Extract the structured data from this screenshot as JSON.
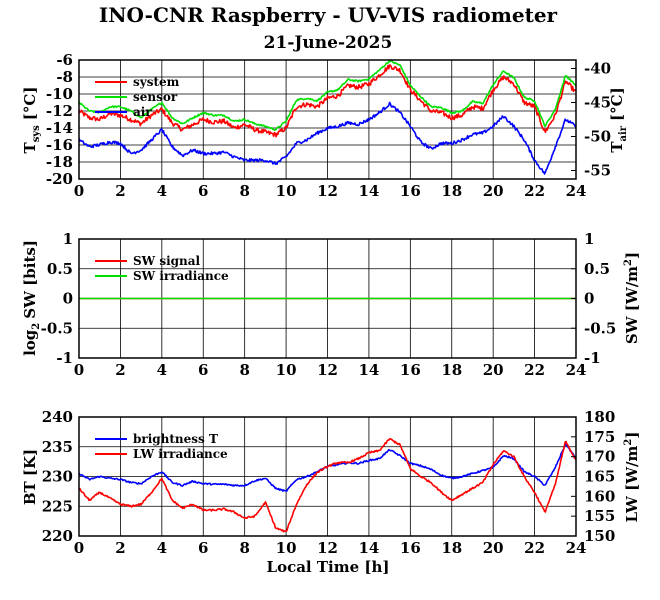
{
  "title": "INO-CNR Raspberry - UV-VIS radiometer",
  "subtitle": "21-June-2025",
  "colors": {
    "red": "#ff0000",
    "green": "#00e000",
    "blue": "#0000ff",
    "grid": "#000000"
  },
  "chart_data": [
    {
      "type": "line",
      "name": "temperature",
      "ylabel_left": "T",
      "ylabel_left_sub": "sys",
      "ylabel_left_unit": "[°C]",
      "ylabel_right": "T",
      "ylabel_right_sub": "air",
      "ylabel_right_unit": "[°C]",
      "xlim": [
        0,
        24
      ],
      "ylim": [
        -20,
        -6
      ],
      "ylim_right": [
        -56.25,
        -38.75
      ],
      "xticks": [
        0,
        2,
        4,
        6,
        8,
        10,
        12,
        14,
        16,
        18,
        20,
        22,
        24
      ],
      "yticks": [
        -20,
        -18,
        -16,
        -14,
        -12,
        -10,
        -8,
        -6
      ],
      "yticks_right": [
        -55,
        -50,
        -45,
        -40
      ],
      "grid": true,
      "legend_position": "top-left",
      "series": [
        {
          "name": "system",
          "color": "#ff0000",
          "axis": "left",
          "noise": 0.55,
          "x": [
            0,
            0.5,
            1,
            1.5,
            2,
            2.5,
            3,
            3.5,
            4,
            4.5,
            5,
            5.5,
            6,
            6.5,
            7,
            7.5,
            8,
            8.5,
            9,
            9.5,
            10,
            10.5,
            11,
            11.5,
            12,
            12.5,
            13,
            13.5,
            14,
            14.5,
            15,
            15.5,
            16,
            16.5,
            17,
            17.5,
            18,
            18.5,
            19,
            19.5,
            20,
            20.5,
            21,
            21.5,
            22,
            22.5,
            23,
            23.5,
            24
          ],
          "y": [
            -12,
            -12.8,
            -13,
            -12.3,
            -12.5,
            -13,
            -13.5,
            -12.5,
            -11.8,
            -13.4,
            -14.2,
            -13.6,
            -13,
            -13.3,
            -13.2,
            -14,
            -13.6,
            -14.2,
            -14.5,
            -14.8,
            -14,
            -11.5,
            -11.2,
            -11.5,
            -10.5,
            -10.2,
            -9,
            -9.2,
            -8.8,
            -7.8,
            -6.7,
            -7.2,
            -9.5,
            -10.8,
            -12,
            -12.2,
            -12.8,
            -12.5,
            -11.5,
            -11.7,
            -9.5,
            -8,
            -8.8,
            -11,
            -11.5,
            -14.5,
            -12.5,
            -8.5,
            -9.8
          ]
        },
        {
          "name": "sensor",
          "color": "#00e000",
          "axis": "left",
          "noise": 0.2,
          "x": [
            0,
            0.5,
            1,
            1.5,
            2,
            2.5,
            3,
            3.5,
            4,
            4.5,
            5,
            5.5,
            6,
            6.5,
            7,
            7.5,
            8,
            8.5,
            9,
            9.5,
            10,
            10.5,
            11,
            11.5,
            12,
            12.5,
            13,
            13.5,
            14,
            14.5,
            15,
            15.5,
            16,
            16.5,
            17,
            17.5,
            18,
            18.5,
            19,
            19.5,
            20,
            20.5,
            21,
            21.5,
            22,
            22.5,
            23,
            23.5,
            24
          ],
          "y": [
            -11,
            -12,
            -12.2,
            -11.5,
            -11.5,
            -12,
            -12.8,
            -11.8,
            -11,
            -12.8,
            -13.5,
            -12.8,
            -12.2,
            -12.5,
            -12.5,
            -13.2,
            -13,
            -13.5,
            -13.8,
            -14.2,
            -13.2,
            -10.7,
            -10.5,
            -10.8,
            -9.8,
            -9.5,
            -8.3,
            -8.5,
            -8.2,
            -7.2,
            -6.1,
            -6.6,
            -9,
            -10.3,
            -11.5,
            -11.6,
            -12.2,
            -12,
            -10.9,
            -11.1,
            -8.9,
            -7.3,
            -8.1,
            -10.4,
            -10.8,
            -13.8,
            -11.8,
            -7.8,
            -9
          ]
        },
        {
          "name": "air",
          "color": "#0000ff",
          "axis": "right",
          "noise": 0.45,
          "x": [
            0,
            0.5,
            1,
            1.5,
            2,
            2.5,
            3,
            3.5,
            4,
            4.5,
            5,
            5.5,
            6,
            6.5,
            7,
            7.5,
            8,
            8.5,
            9,
            9.5,
            10,
            10.5,
            11,
            11.5,
            12,
            12.5,
            13,
            13.5,
            14,
            14.5,
            15,
            15.5,
            16,
            16.5,
            17,
            17.5,
            18,
            18.5,
            19,
            19.5,
            20,
            20.5,
            21,
            21.5,
            22,
            22.5,
            23,
            23.5,
            24
          ],
          "y": [
            -50.5,
            -51.5,
            -51.2,
            -50.8,
            -51,
            -52.5,
            -52,
            -50.5,
            -49,
            -51.5,
            -52.8,
            -52,
            -52.5,
            -52.5,
            -52.3,
            -53,
            -53.5,
            -53.5,
            -53.5,
            -54,
            -53,
            -51,
            -50.5,
            -49.5,
            -48.8,
            -48.5,
            -48,
            -48.2,
            -47.5,
            -46.5,
            -45.2,
            -46.5,
            -48.5,
            -50.8,
            -51.8,
            -51,
            -51,
            -50.5,
            -49.7,
            -49.5,
            -48.5,
            -47,
            -48.5,
            -50.5,
            -53.5,
            -55.5,
            -51.5,
            -47.5,
            -48.5
          ]
        }
      ]
    },
    {
      "type": "line",
      "name": "shortwave",
      "ylabel_left": "log",
      "ylabel_left_sub": "2",
      "ylabel_left_unit": "SW [bits]",
      "ylabel_right": "SW [W/m",
      "ylabel_right_sup": "2",
      "ylabel_right_tail": "]",
      "xlim": [
        0,
        24
      ],
      "ylim": [
        -1,
        1
      ],
      "ylim_right": [
        -1,
        1
      ],
      "xticks": [
        0,
        2,
        4,
        6,
        8,
        10,
        12,
        14,
        16,
        18,
        20,
        22,
        24
      ],
      "yticks": [
        -1,
        -0.5,
        0,
        0.5,
        1
      ],
      "yticks_right": [
        -1,
        -0.5,
        0,
        0.5,
        1
      ],
      "grid": true,
      "legend_position": "top-left",
      "series": [
        {
          "name": "SW signal",
          "color": "#ff0000",
          "axis": "left",
          "noise": 0,
          "x": [
            0,
            24
          ],
          "y": [
            0,
            0
          ]
        },
        {
          "name": "SW irradiance",
          "color": "#00e000",
          "axis": "right",
          "noise": 0,
          "x": [
            0,
            24
          ],
          "y": [
            0,
            0
          ]
        }
      ]
    },
    {
      "type": "line",
      "name": "longwave",
      "ylabel_left": "BT [K]",
      "ylabel_right": "LW [W/m",
      "ylabel_right_sup": "2",
      "ylabel_right_tail": "]",
      "xlabel": "Local Time [h]",
      "xlim": [
        0,
        24
      ],
      "ylim": [
        220,
        240
      ],
      "ylim_right": [
        150,
        180
      ],
      "xticks": [
        0,
        2,
        4,
        6,
        8,
        10,
        12,
        14,
        16,
        18,
        20,
        22,
        24
      ],
      "yticks": [
        220,
        225,
        230,
        235,
        240
      ],
      "yticks_right": [
        150,
        155,
        160,
        165,
        170,
        175,
        180
      ],
      "grid": true,
      "legend_position": "top-left",
      "series": [
        {
          "name": "brightness T",
          "color": "#0000ff",
          "axis": "left",
          "noise": 0.25,
          "x": [
            0,
            0.5,
            1,
            1.5,
            2,
            2.5,
            3,
            3.5,
            4,
            4.5,
            5,
            5.5,
            6,
            6.5,
            7,
            7.5,
            8,
            8.5,
            9,
            9.5,
            10,
            10.5,
            11,
            11.5,
            12,
            12.5,
            13,
            13.5,
            14,
            14.5,
            15,
            15.5,
            16,
            16.5,
            17,
            17.5,
            18,
            18.5,
            19,
            19.5,
            20,
            20.5,
            21,
            21.5,
            22,
            22.5,
            23,
            23.5,
            24
          ],
          "y": [
            230.5,
            229.5,
            230,
            229.7,
            229.5,
            229,
            228.8,
            230,
            230.8,
            229,
            228.5,
            229.2,
            228.8,
            228.7,
            228.7,
            228.5,
            228.5,
            229.3,
            229.7,
            228,
            227.5,
            229.5,
            230,
            230.8,
            231.7,
            232,
            232.3,
            232.2,
            232.7,
            233,
            234.5,
            233.5,
            232.2,
            231.8,
            231.2,
            230.2,
            229.7,
            230,
            230.5,
            231,
            231.5,
            233.5,
            233,
            230.8,
            230,
            228.5,
            231.5,
            235.5,
            233
          ]
        },
        {
          "name": "LW irradiance",
          "color": "#ff0000",
          "axis": "right",
          "noise": 0.45,
          "x": [
            0,
            0.5,
            1,
            1.5,
            2,
            2.5,
            3,
            3.5,
            4,
            4.5,
            5,
            5.5,
            6,
            6.5,
            7,
            7.5,
            8,
            8.5,
            9,
            9.5,
            10,
            10.5,
            11,
            11.5,
            12,
            12.5,
            13,
            13.5,
            14,
            14.5,
            15,
            15.5,
            16,
            16.5,
            17,
            17.5,
            18,
            18.5,
            19,
            19.5,
            20,
            20.5,
            21,
            21.5,
            22,
            22.5,
            23,
            23.5,
            24
          ],
          "y": [
            162,
            159,
            161,
            159.5,
            158,
            157.5,
            158,
            161,
            164.5,
            159,
            157,
            158,
            156.5,
            156.5,
            156.8,
            156,
            154.5,
            155,
            158.5,
            152,
            151,
            158,
            163,
            166,
            167.5,
            168.5,
            168.5,
            169.5,
            171,
            171.5,
            174.5,
            173,
            167,
            165,
            163.5,
            161,
            159,
            160.5,
            162,
            163.5,
            168,
            171.5,
            170,
            165,
            161,
            156,
            163,
            174,
            169
          ]
        }
      ]
    }
  ]
}
